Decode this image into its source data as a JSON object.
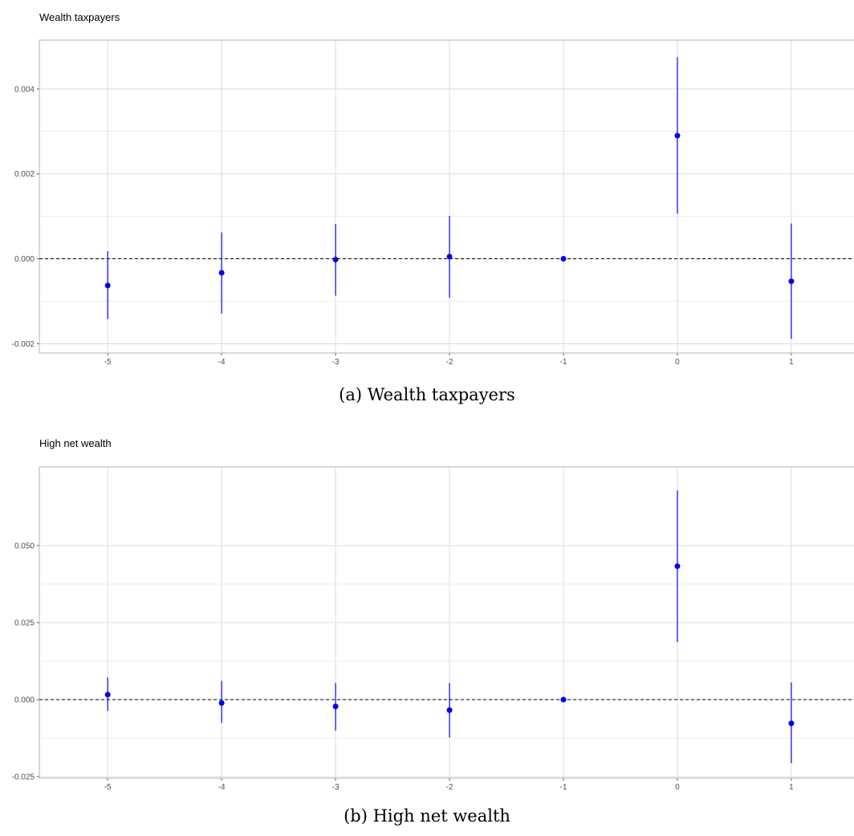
{
  "chart_data": [
    {
      "type": "scatter",
      "title": "Wealth taxpayers",
      "caption": "(a) Wealth taxpayers",
      "x": [
        -5,
        -4,
        -3,
        -2,
        -1,
        0,
        1
      ],
      "y": [
        -0.00063,
        -0.00033,
        -2e-05,
        5e-05,
        0.0,
        0.0029,
        -0.00053
      ],
      "ci_low": [
        -0.00142,
        -0.00129,
        -0.00087,
        -0.00092,
        0.0,
        0.00106,
        -0.00189
      ],
      "ci_high": [
        0.00018,
        0.00062,
        0.00082,
        0.00101,
        0.0,
        0.00475,
        0.00083
      ],
      "xlim": [
        -5.6,
        1.55
      ],
      "ylim": [
        -0.00222,
        0.00515
      ],
      "xticks": [
        "-5",
        "-4",
        "-3",
        "-2",
        "-1",
        "0",
        "1"
      ],
      "yticks": [
        -0.002,
        0.0,
        0.002,
        0.004
      ],
      "ytick_labels": [
        "-0.002",
        "0.000",
        "0.002",
        "0.004"
      ],
      "reference_line": 0,
      "grid": true,
      "point_color": "#0000ee",
      "line_color": "#0000ee"
    },
    {
      "type": "scatter",
      "title": "High net wealth",
      "caption": "(b) High net wealth",
      "x": [
        -5,
        -4,
        -3,
        -2,
        -1,
        0,
        1
      ],
      "y": [
        0.0016,
        -0.0011,
        -0.0022,
        -0.0034,
        0.0,
        0.0433,
        -0.0077
      ],
      "ci_low": [
        -0.0037,
        -0.0076,
        -0.0101,
        -0.0123,
        0.0,
        0.0187,
        -0.0206
      ],
      "ci_high": [
        0.0072,
        0.0061,
        0.0054,
        0.0054,
        0.0,
        0.0679,
        0.0056
      ],
      "xlim": [
        -5.6,
        1.55
      ],
      "ylim": [
        -0.0255,
        0.0755
      ],
      "xticks": [
        "-5",
        "-4",
        "-3",
        "-2",
        "-1",
        "0",
        "1"
      ],
      "yticks": [
        -0.025,
        0.0,
        0.025,
        0.05
      ],
      "ytick_labels": [
        "-0.025",
        "0.000",
        "0.025",
        "0.050"
      ],
      "reference_line": 0,
      "grid": true,
      "point_color": "#0000ee",
      "line_color": "#0000ee"
    }
  ]
}
